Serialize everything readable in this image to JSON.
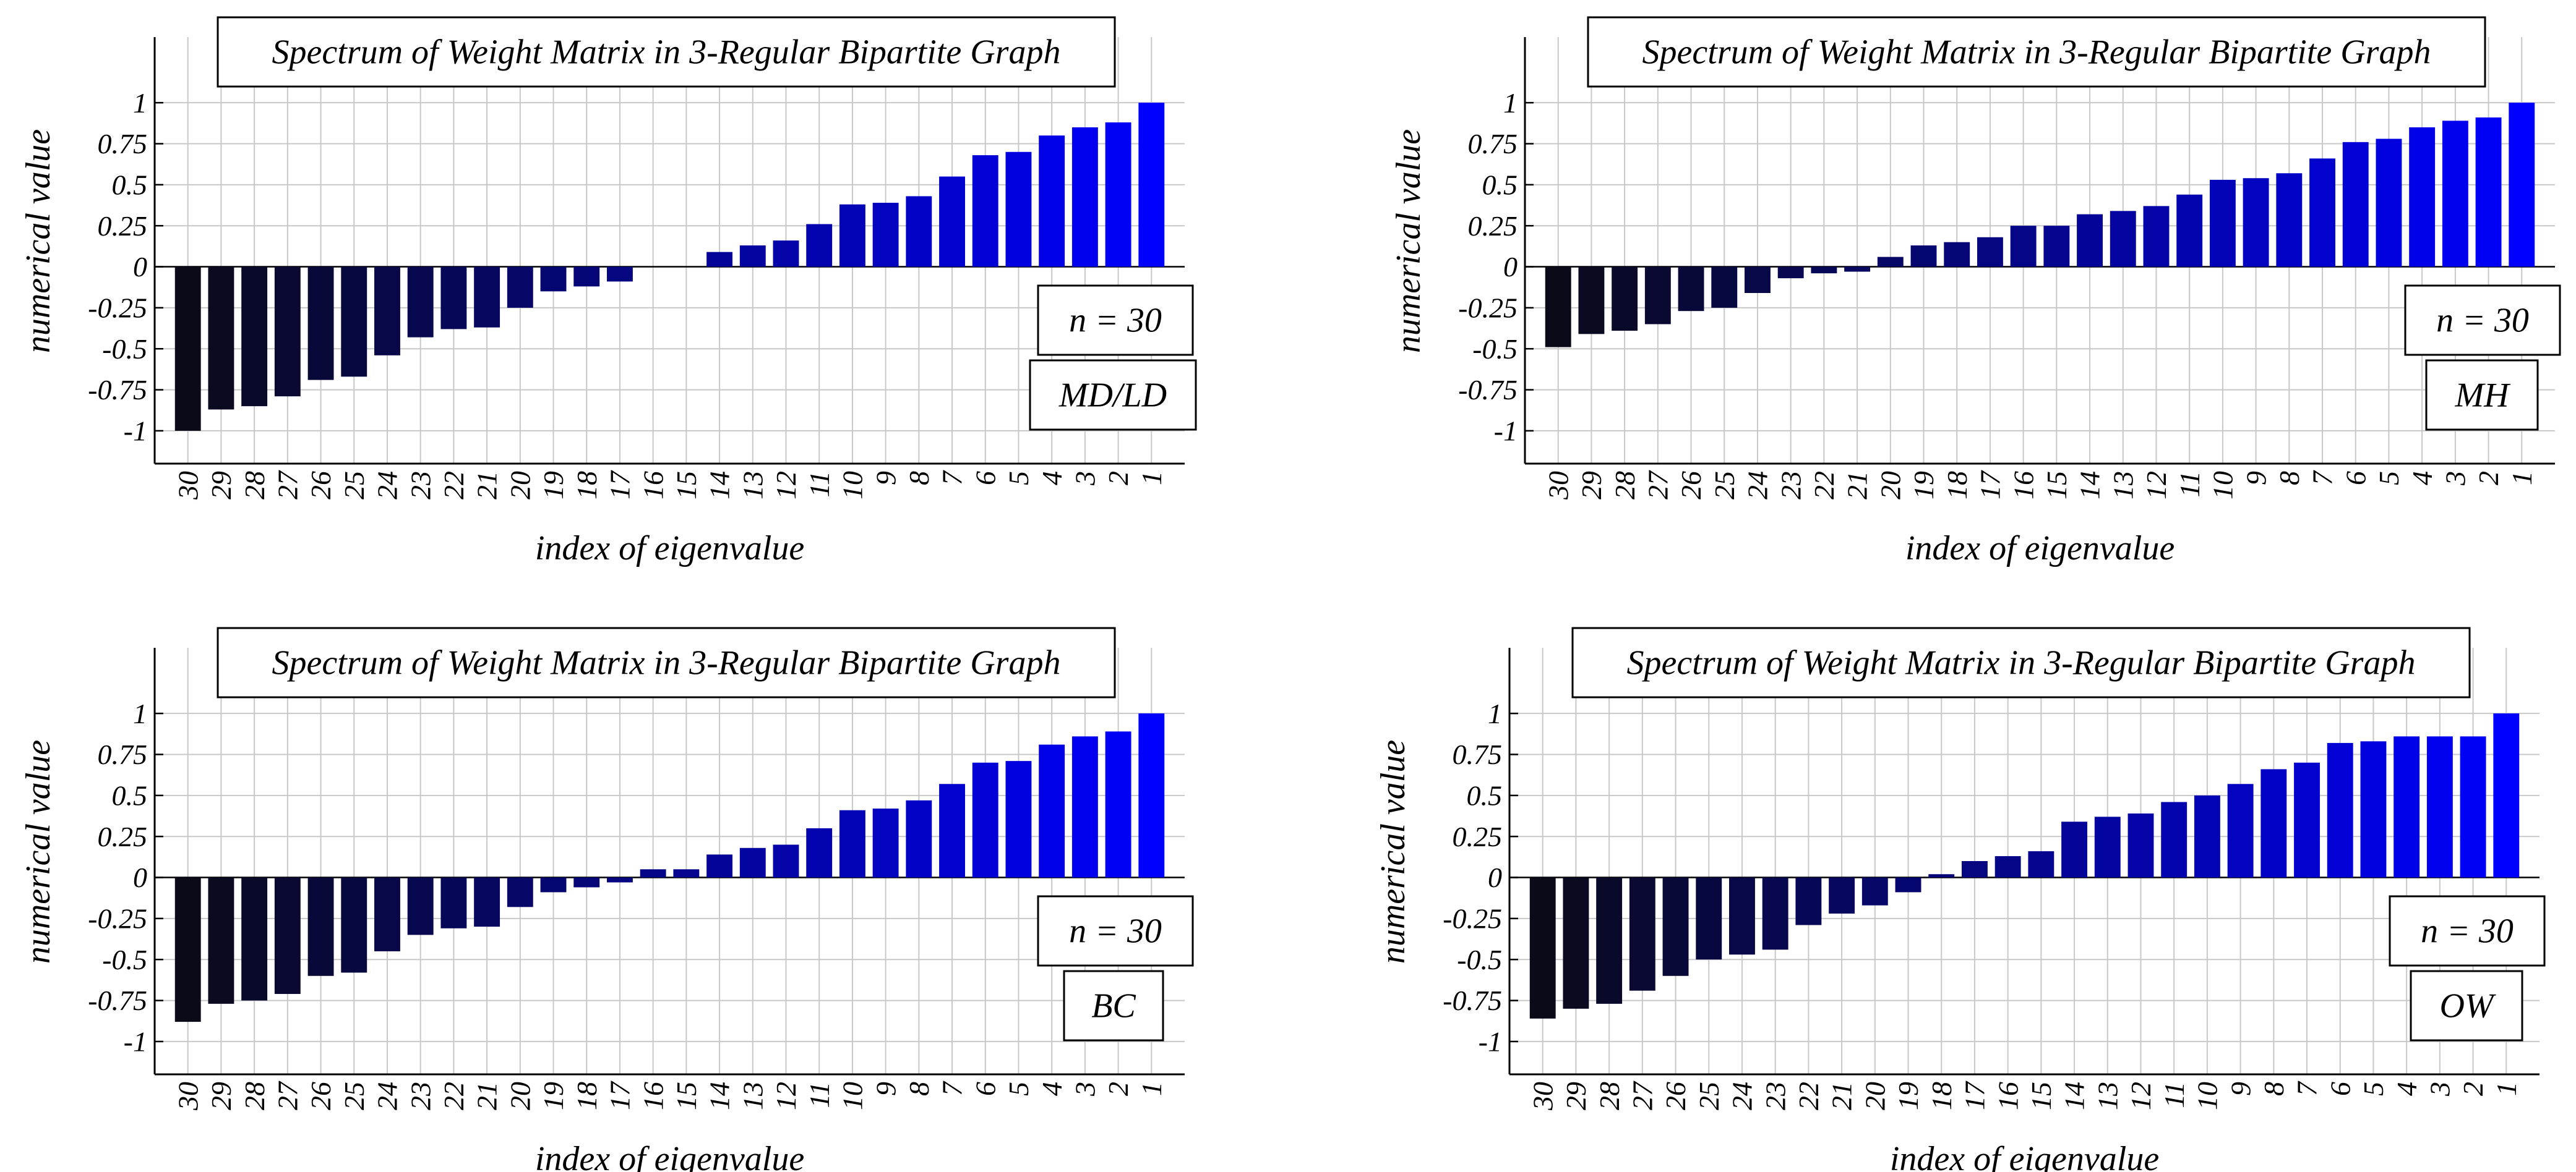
{
  "chart_data": [
    {
      "type": "bar",
      "title": "Spectrum of Weight Matrix in 3-Regular Bipartite Graph",
      "xlabel": "index of eigenvalue",
      "ylabel": "numerical value",
      "annotations": [
        "n = 30",
        "MD/LD"
      ],
      "categories": [
        "30",
        "29",
        "28",
        "27",
        "26",
        "25",
        "24",
        "23",
        "22",
        "21",
        "20",
        "19",
        "18",
        "17",
        "16",
        "15",
        "14",
        "13",
        "12",
        "11",
        "10",
        "9",
        "8",
        "7",
        "6",
        "5",
        "4",
        "3",
        "2",
        "1"
      ],
      "values": [
        -1.0,
        -0.87,
        -0.85,
        -0.79,
        -0.69,
        -0.67,
        -0.54,
        -0.43,
        -0.38,
        -0.37,
        -0.25,
        -0.15,
        -0.12,
        -0.09,
        0,
        0,
        0.09,
        0.13,
        0.16,
        0.26,
        0.38,
        0.39,
        0.43,
        0.55,
        0.68,
        0.7,
        0.8,
        0.85,
        0.88,
        1.0
      ],
      "yticks": [
        "1",
        "0.75",
        "0.5",
        "0.25",
        "0",
        "-0.25",
        "-0.5",
        "-0.75",
        "-1"
      ],
      "ylim": [
        -1.2,
        1.4
      ],
      "grid": true
    },
    {
      "type": "bar",
      "title": "Spectrum of Weight Matrix in 3-Regular Bipartite Graph",
      "xlabel": "index of eigenvalue",
      "ylabel": "numerical value",
      "annotations": [
        "n = 30",
        "MH"
      ],
      "categories": [
        "30",
        "29",
        "28",
        "27",
        "26",
        "25",
        "24",
        "23",
        "22",
        "21",
        "20",
        "19",
        "18",
        "17",
        "16",
        "15",
        "14",
        "13",
        "12",
        "11",
        "10",
        "9",
        "8",
        "7",
        "6",
        "5",
        "4",
        "3",
        "2",
        "1"
      ],
      "values": [
        -0.49,
        -0.41,
        -0.39,
        -0.35,
        -0.27,
        -0.25,
        -0.16,
        -0.07,
        -0.04,
        -0.03,
        0.06,
        0.13,
        0.15,
        0.18,
        0.25,
        0.25,
        0.32,
        0.34,
        0.37,
        0.44,
        0.53,
        0.54,
        0.57,
        0.66,
        0.76,
        0.78,
        0.85,
        0.89,
        0.91,
        1.0
      ],
      "yticks": [
        "1",
        "0.75",
        "0.5",
        "0.25",
        "0",
        "-0.25",
        "-0.5",
        "-0.75",
        "-1"
      ],
      "ylim": [
        -1.2,
        1.4
      ],
      "grid": true
    },
    {
      "type": "bar",
      "title": "Spectrum of Weight Matrix in 3-Regular Bipartite Graph",
      "xlabel": "index of eigenvalue",
      "ylabel": "numerical value",
      "annotations": [
        "n = 30",
        "BC"
      ],
      "categories": [
        "30",
        "29",
        "28",
        "27",
        "26",
        "25",
        "24",
        "23",
        "22",
        "21",
        "20",
        "19",
        "18",
        "17",
        "16",
        "15",
        "14",
        "13",
        "12",
        "11",
        "10",
        "9",
        "8",
        "7",
        "6",
        "5",
        "4",
        "3",
        "2",
        "1"
      ],
      "values": [
        -0.88,
        -0.77,
        -0.75,
        -0.71,
        -0.6,
        -0.58,
        -0.45,
        -0.35,
        -0.31,
        -0.3,
        -0.18,
        -0.09,
        -0.06,
        -0.03,
        0.05,
        0.05,
        0.14,
        0.18,
        0.2,
        0.3,
        0.41,
        0.42,
        0.47,
        0.57,
        0.7,
        0.71,
        0.81,
        0.86,
        0.89,
        1.0
      ],
      "yticks": [
        "1",
        "0.75",
        "0.5",
        "0.25",
        "0",
        "-0.25",
        "-0.5",
        "-0.75",
        "-1"
      ],
      "ylim": [
        -1.2,
        1.4
      ],
      "grid": true
    },
    {
      "type": "bar",
      "title": "Spectrum of Weight Matrix in 3-Regular Bipartite Graph",
      "xlabel": "index of eigenvalue",
      "ylabel": "numerical value",
      "annotations": [
        "n = 30",
        "OW"
      ],
      "categories": [
        "30",
        "29",
        "28",
        "27",
        "26",
        "25",
        "24",
        "23",
        "22",
        "21",
        "20",
        "19",
        "18",
        "17",
        "16",
        "15",
        "14",
        "13",
        "12",
        "11",
        "10",
        "9",
        "8",
        "7",
        "6",
        "5",
        "4",
        "3",
        "2",
        "1"
      ],
      "values": [
        -0.86,
        -0.8,
        -0.77,
        -0.69,
        -0.6,
        -0.5,
        -0.47,
        -0.44,
        -0.29,
        -0.22,
        -0.17,
        -0.09,
        0.02,
        0.1,
        0.13,
        0.16,
        0.34,
        0.37,
        0.39,
        0.46,
        0.5,
        0.57,
        0.66,
        0.7,
        0.82,
        0.83,
        0.86,
        0.86,
        0.86,
        1.0
      ],
      "yticks": [
        "1",
        "0.75",
        "0.5",
        "0.25",
        "0",
        "-0.25",
        "-0.5",
        "-0.75",
        "-1"
      ],
      "ylim": [
        -1.2,
        1.4
      ],
      "grid": true
    }
  ]
}
